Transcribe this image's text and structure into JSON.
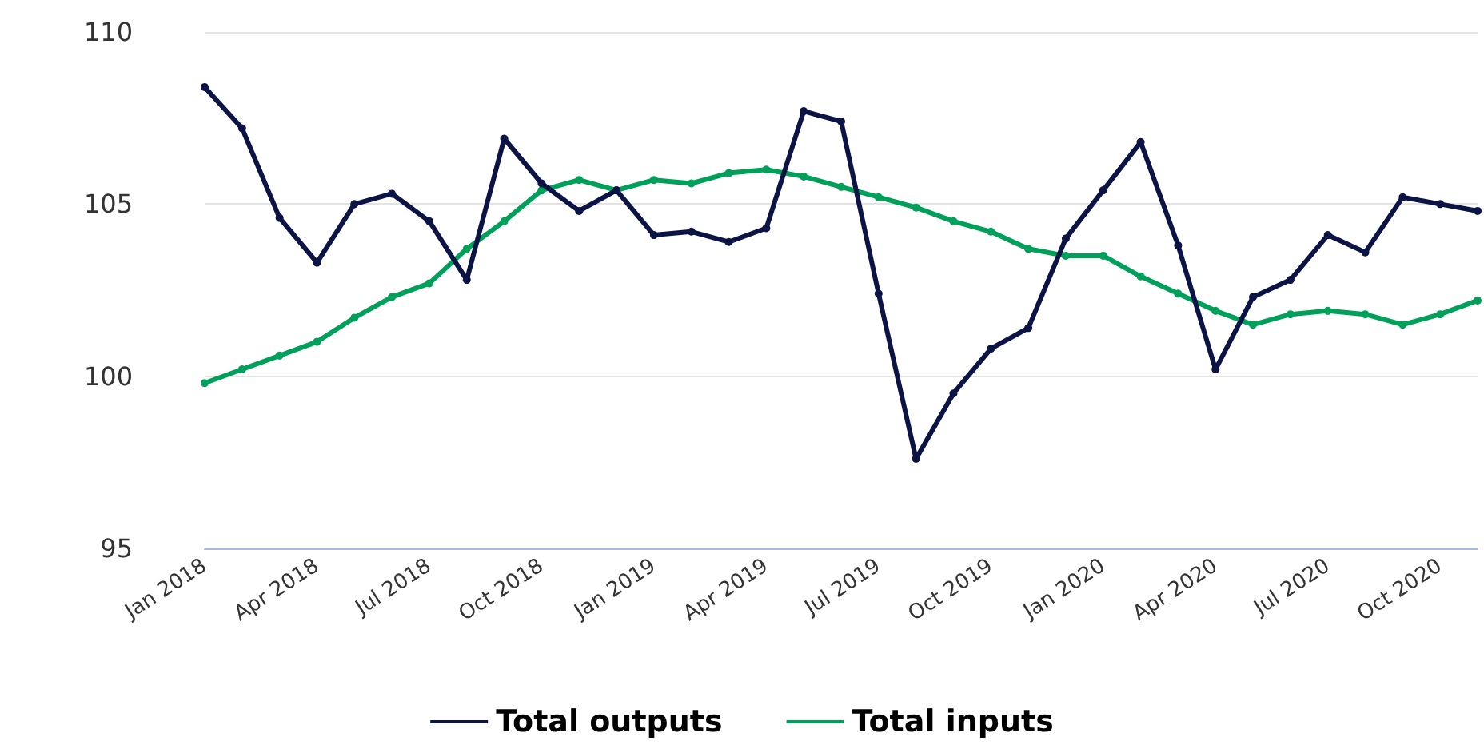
{
  "chart_data": {
    "type": "line",
    "categories": [
      "Jan 2018",
      null,
      null,
      "Apr 2018",
      null,
      null,
      "Jul 2018",
      null,
      null,
      "Oct 2018",
      null,
      null,
      "Jan 2019",
      null,
      null,
      "Apr 2019",
      null,
      null,
      "Jul 2019",
      null,
      null,
      "Oct 2019",
      null,
      null,
      "Jan 2020",
      null,
      null,
      "Apr 2020",
      null,
      null,
      "Jul 2020",
      null,
      null,
      "Oct 2020",
      null
    ],
    "series": [
      {
        "name": "Total outputs",
        "color": "#0c1445",
        "values": [
          108.4,
          107.2,
          104.6,
          103.3,
          105.0,
          105.3,
          104.5,
          102.8,
          106.9,
          105.6,
          104.8,
          105.4,
          104.1,
          104.2,
          103.9,
          104.3,
          107.7,
          107.4,
          102.4,
          97.6,
          99.5,
          100.8,
          101.4,
          104.0,
          105.4,
          106.8,
          103.8,
          100.2,
          102.3,
          102.8,
          104.1,
          103.6,
          105.2,
          105.0,
          104.8
        ]
      },
      {
        "name": "Total inputs",
        "color": "#00a05a",
        "values": [
          99.8,
          100.2,
          100.6,
          101.0,
          101.7,
          102.3,
          102.7,
          103.7,
          104.5,
          105.4,
          105.7,
          105.4,
          105.7,
          105.6,
          105.9,
          106.0,
          105.8,
          105.5,
          105.2,
          104.9,
          104.5,
          104.2,
          103.7,
          103.5,
          103.5,
          102.9,
          102.4,
          101.9,
          101.5,
          101.8,
          101.9,
          101.8,
          101.5,
          101.8,
          102.2
        ]
      }
    ],
    "ylim": [
      95,
      110
    ],
    "yticks": [
      95,
      100,
      105,
      110
    ],
    "grid": "y",
    "legend": "bottom",
    "marker": "circle",
    "line_style": "solid"
  }
}
